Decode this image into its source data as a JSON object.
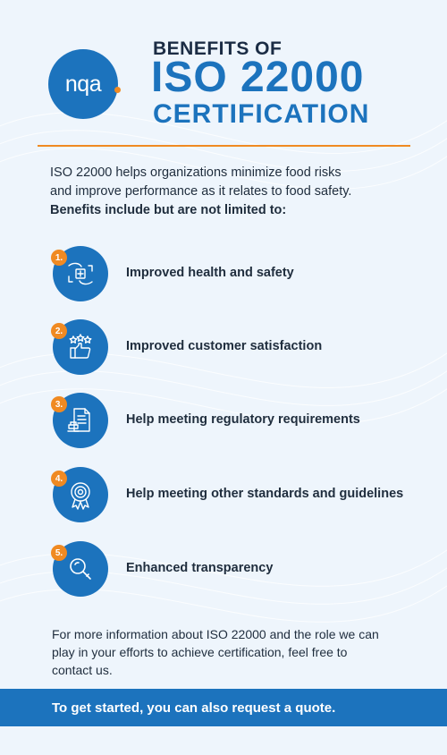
{
  "brand": {
    "logo_text": "nqa",
    "color_primary": "#1c73bd",
    "color_accent": "#f08a22"
  },
  "header": {
    "title_top": "BENEFITS OF",
    "title_main": "ISO 22000",
    "title_sub": "CERTIFICATION"
  },
  "intro": {
    "line1": "ISO 22000 helps organizations minimize food risks",
    "line2": "and improve performance as it relates to food safety.",
    "line3": "Benefits include but are not limited to:"
  },
  "benefits": [
    {
      "number": "1.",
      "label": "Improved health and safety",
      "icon": "hands-health-cross-icon"
    },
    {
      "number": "2.",
      "label": "Improved customer satisfaction",
      "icon": "thumbs-up-stars-icon"
    },
    {
      "number": "3.",
      "label": "Help meeting regulatory requirements",
      "icon": "document-stamp-icon"
    },
    {
      "number": "4.",
      "label": "Help meeting other standards and guidelines",
      "icon": "award-badge-icon"
    },
    {
      "number": "5.",
      "label": "Enhanced transparency",
      "icon": "magnifier-icon"
    }
  ],
  "footer": {
    "line1": "For more information about ISO 22000 and the role we can",
    "line2": "play in your efforts to achieve certification, feel free to",
    "line3": "contact us.",
    "cta": "To get started, you can also request a quote."
  }
}
